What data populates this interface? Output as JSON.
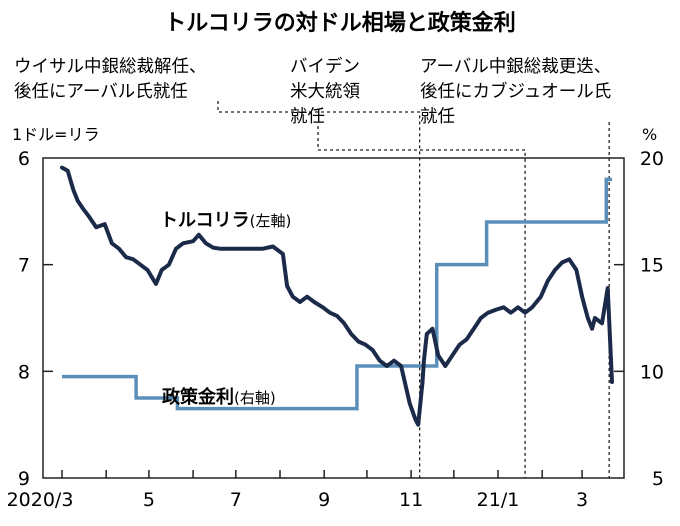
{
  "chart_data": {
    "type": "line",
    "title": "トルコリラの対ドル相場と政策金利",
    "left_unit": "1ドル=リラ",
    "right_unit": "%",
    "left_axis": {
      "ticks": [
        "6",
        "7",
        "8",
        "9"
      ],
      "range": [
        6,
        9
      ],
      "inverted": true
    },
    "right_axis": {
      "ticks": [
        "20",
        "15",
        "10",
        "5"
      ],
      "range": [
        5,
        20
      ]
    },
    "x_axis": {
      "ticks": [
        "2020/3",
        "5",
        "7",
        "9",
        "11",
        "21/1",
        "3"
      ]
    },
    "annotations": [
      {
        "lines": [
          "ウイサル中銀総裁解任、",
          "後任にアーバル氏就任"
        ],
        "date": "2020-11-07"
      },
      {
        "lines": [
          "バイデン",
          "米大統領",
          "就任"
        ],
        "date": "2021-01-20"
      },
      {
        "lines": [
          "アーバル中銀総裁更迭、",
          "後任にカブジュオール氏",
          "就任"
        ],
        "date": "2021-03-20"
      }
    ],
    "series": [
      {
        "name": "トルコリラ",
        "axis_note": "(左軸)",
        "axis": "left",
        "color": "#1c2a4a",
        "points": [
          [
            "2020-03-01",
            6.09
          ],
          [
            "2020-03-05",
            6.12
          ],
          [
            "2020-03-09",
            6.3
          ],
          [
            "2020-03-12",
            6.4
          ],
          [
            "2020-03-16",
            6.48
          ],
          [
            "2020-03-20",
            6.55
          ],
          [
            "2020-03-25",
            6.65
          ],
          [
            "2020-03-31",
            6.62
          ],
          [
            "2020-04-05",
            6.8
          ],
          [
            "2020-04-10",
            6.85
          ],
          [
            "2020-04-15",
            6.93
          ],
          [
            "2020-04-20",
            6.95
          ],
          [
            "2020-04-25",
            7.0
          ],
          [
            "2020-04-30",
            7.05
          ],
          [
            "2020-05-06",
            7.18
          ],
          [
            "2020-05-10",
            7.05
          ],
          [
            "2020-05-15",
            7.0
          ],
          [
            "2020-05-20",
            6.85
          ],
          [
            "2020-05-25",
            6.8
          ],
          [
            "2020-06-01",
            6.78
          ],
          [
            "2020-06-05",
            6.72
          ],
          [
            "2020-06-10",
            6.8
          ],
          [
            "2020-06-15",
            6.84
          ],
          [
            "2020-06-20",
            6.85
          ],
          [
            "2020-06-30",
            6.85
          ],
          [
            "2020-07-10",
            6.85
          ],
          [
            "2020-07-20",
            6.85
          ],
          [
            "2020-07-27",
            6.83
          ],
          [
            "2020-08-03",
            6.9
          ],
          [
            "2020-08-06",
            7.2
          ],
          [
            "2020-08-10",
            7.3
          ],
          [
            "2020-08-15",
            7.35
          ],
          [
            "2020-08-20",
            7.3
          ],
          [
            "2020-08-25",
            7.35
          ],
          [
            "2020-08-31",
            7.4
          ],
          [
            "2020-09-05",
            7.45
          ],
          [
            "2020-09-10",
            7.48
          ],
          [
            "2020-09-15",
            7.55
          ],
          [
            "2020-09-20",
            7.65
          ],
          [
            "2020-09-25",
            7.72
          ],
          [
            "2020-09-30",
            7.75
          ],
          [
            "2020-10-05",
            7.8
          ],
          [
            "2020-10-10",
            7.9
          ],
          [
            "2020-10-15",
            7.95
          ],
          [
            "2020-10-20",
            7.9
          ],
          [
            "2020-10-25",
            7.95
          ],
          [
            "2020-10-31",
            8.3
          ],
          [
            "2020-11-04",
            8.45
          ],
          [
            "2020-11-06",
            8.5
          ],
          [
            "2020-11-09",
            8.1
          ],
          [
            "2020-11-10",
            7.9
          ],
          [
            "2020-11-12",
            7.65
          ],
          [
            "2020-11-16",
            7.6
          ],
          [
            "2020-11-20",
            7.85
          ],
          [
            "2020-11-25",
            7.95
          ],
          [
            "2020-11-30",
            7.85
          ],
          [
            "2020-12-05",
            7.75
          ],
          [
            "2020-12-10",
            7.7
          ],
          [
            "2020-12-15",
            7.6
          ],
          [
            "2020-12-20",
            7.5
          ],
          [
            "2020-12-25",
            7.45
          ],
          [
            "2020-12-31",
            7.42
          ],
          [
            "2021-01-05",
            7.4
          ],
          [
            "2021-01-10",
            7.45
          ],
          [
            "2021-01-15",
            7.4
          ],
          [
            "2021-01-20",
            7.45
          ],
          [
            "2021-01-25",
            7.4
          ],
          [
            "2021-01-31",
            7.3
          ],
          [
            "2021-02-05",
            7.15
          ],
          [
            "2021-02-10",
            7.05
          ],
          [
            "2021-02-15",
            6.98
          ],
          [
            "2021-02-20",
            6.95
          ],
          [
            "2021-02-25",
            7.05
          ],
          [
            "2021-03-01",
            7.3
          ],
          [
            "2021-03-05",
            7.5
          ],
          [
            "2021-03-08",
            7.6
          ],
          [
            "2021-03-10",
            7.5
          ],
          [
            "2021-03-15",
            7.55
          ],
          [
            "2021-03-19",
            7.22
          ],
          [
            "2021-03-22",
            8.1
          ]
        ]
      },
      {
        "name": "政策金利",
        "axis_note": "(右軸)",
        "axis": "right",
        "color": "#5b8fb9",
        "steps": [
          [
            "2020-03-01",
            9.75
          ],
          [
            "2020-04-22",
            8.75
          ],
          [
            "2020-05-21",
            8.25
          ],
          [
            "2020-09-24",
            10.25
          ],
          [
            "2020-11-19",
            15.0
          ],
          [
            "2020-12-24",
            17.0
          ],
          [
            "2021-03-18",
            19.0
          ]
        ]
      }
    ]
  }
}
